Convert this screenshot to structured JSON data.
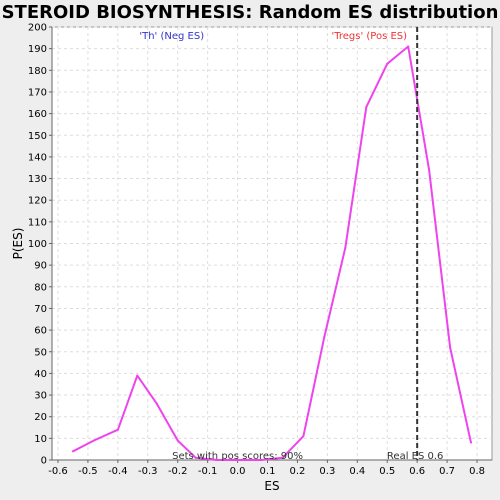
{
  "chart_data": {
    "type": "line",
    "title": "STEROID BIOSYNTHESIS: Random ES distribution",
    "xlabel": "ES",
    "ylabel": "P(ES)",
    "xlim": [
      -0.62,
      0.85
    ],
    "ylim": [
      0,
      200
    ],
    "x_ticks": [
      -0.6,
      -0.5,
      -0.4,
      -0.3,
      -0.2,
      -0.1,
      0.0,
      0.1,
      0.2,
      0.3,
      0.4,
      0.5,
      0.6,
      0.7,
      0.8
    ],
    "x_tick_labels": [
      "-0.6",
      "-0.5",
      "-0.4",
      "-0.3",
      "-0.2",
      "-0.1",
      "0.0",
      "0.1",
      "0.2",
      "0.3",
      "0.4",
      "0.5",
      "0.6",
      "0.7",
      "0.8"
    ],
    "y_ticks": [
      0,
      10,
      20,
      30,
      40,
      50,
      60,
      70,
      80,
      90,
      100,
      110,
      120,
      130,
      140,
      150,
      160,
      170,
      180,
      190,
      200
    ],
    "grid": true,
    "series": [
      {
        "color": "#ee44ee",
        "x": [
          -0.55,
          -0.48,
          -0.4,
          -0.335,
          -0.27,
          -0.2,
          -0.14,
          -0.07,
          0.0,
          0.08,
          0.15,
          0.22,
          0.29,
          0.36,
          0.43,
          0.5,
          0.57,
          0.64,
          0.71,
          0.78
        ],
        "y": [
          4,
          9,
          14,
          39,
          26,
          9,
          1,
          0,
          0,
          0,
          1,
          11,
          57,
          98,
          163,
          183,
          191,
          134,
          52,
          8
        ]
      }
    ],
    "marker_line": {
      "x": 0.6,
      "label": "Real ES 0.6",
      "color": "#333333"
    },
    "annotations": {
      "neg_label": "'Th' (Neg ES)",
      "neg_color": "#3333cc",
      "pos_label": "'Tregs' (Pos ES)",
      "pos_color": "#ee3333",
      "bottom_label": "Sets with pos scores: 90%"
    }
  }
}
